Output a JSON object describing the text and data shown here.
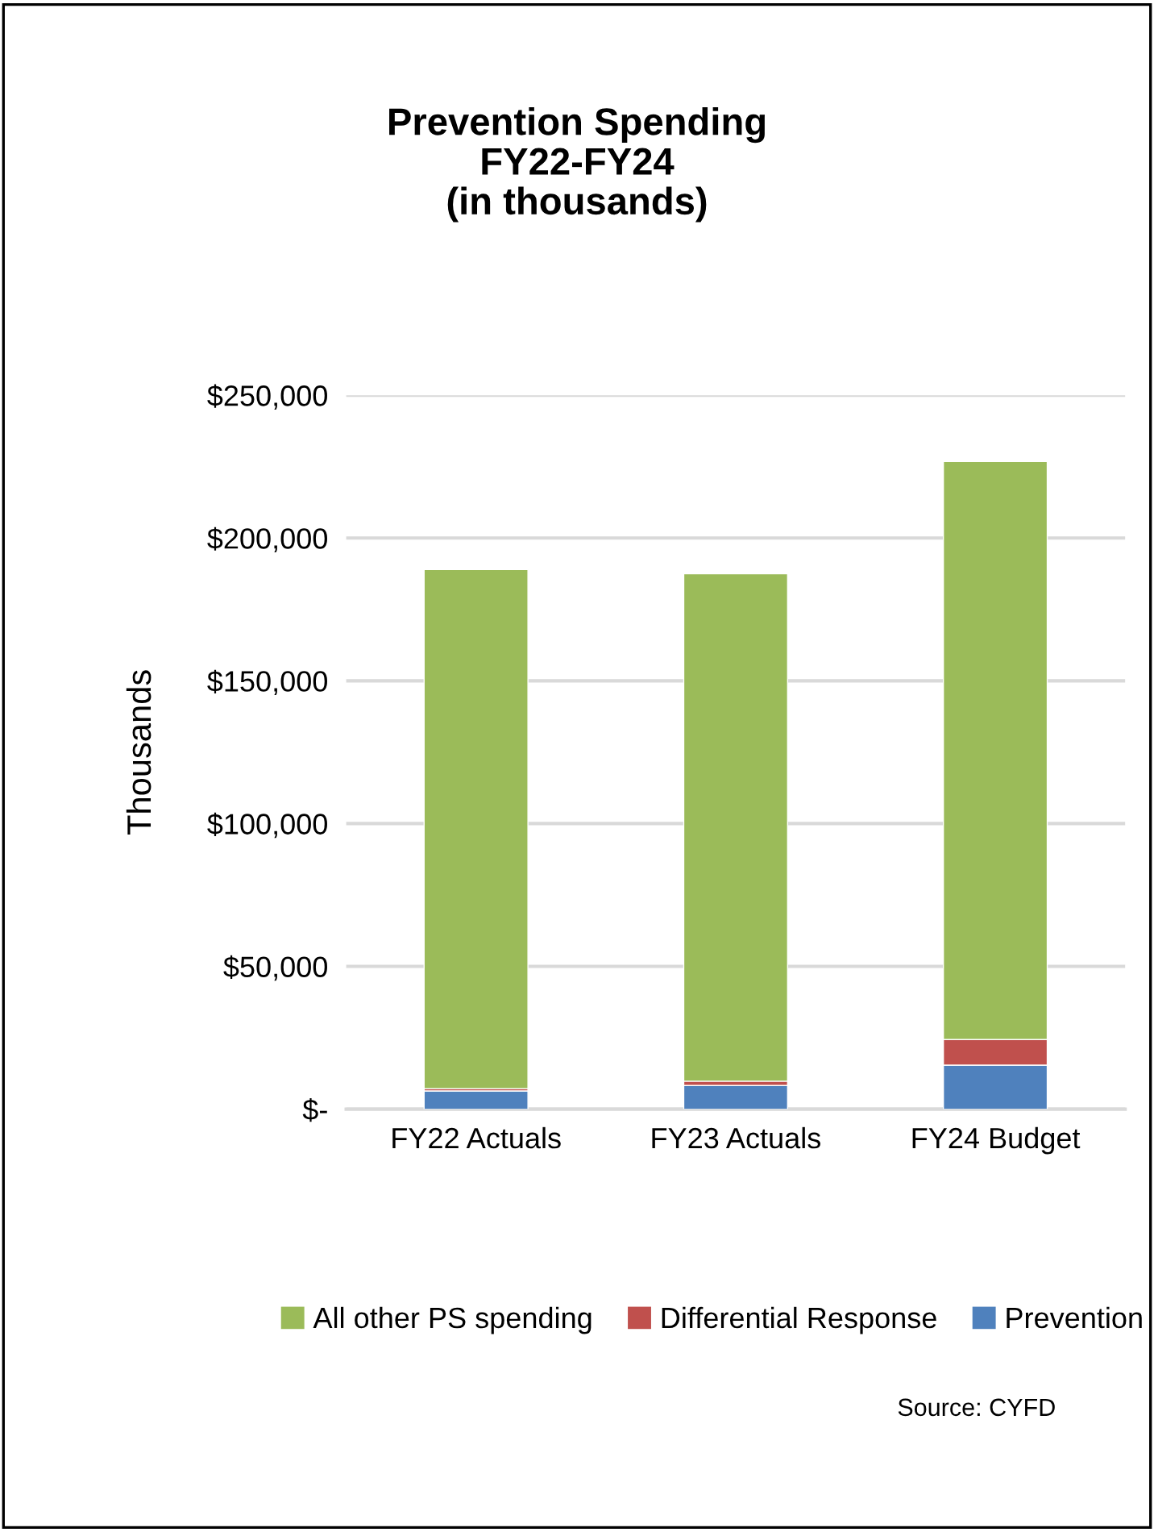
{
  "chart_data": {
    "type": "bar",
    "stacked": true,
    "title": "Prevention Spending\nFY22-FY24\n(in thousands)",
    "ylabel": "Thousands",
    "categories": [
      "FY22 Actuals",
      "FY23 Actuals",
      "FY24 Budget"
    ],
    "series": [
      {
        "name": "Prevention",
        "color": "#4f81bd",
        "values": [
          6400,
          8300,
          15400
        ]
      },
      {
        "name": "Differential Response",
        "color": "#c0504d",
        "values": [
          800,
          1500,
          9000
        ]
      },
      {
        "name": "All other PS spending",
        "color": "#9bbb59",
        "values": [
          181800,
          177700,
          202400
        ]
      }
    ],
    "ylim": [
      0,
      250000
    ],
    "yticks": [
      {
        "value": 0,
        "label": "$-"
      },
      {
        "value": 50000,
        "label": "$50,000"
      },
      {
        "value": 100000,
        "label": "$100,000"
      },
      {
        "value": 150000,
        "label": "$150,000"
      },
      {
        "value": 200000,
        "label": "$200,000"
      },
      {
        "value": 250000,
        "label": "$250,000"
      }
    ],
    "grid": "y",
    "legend": "bottom",
    "annotations": [
      "Source: CYFD"
    ]
  }
}
